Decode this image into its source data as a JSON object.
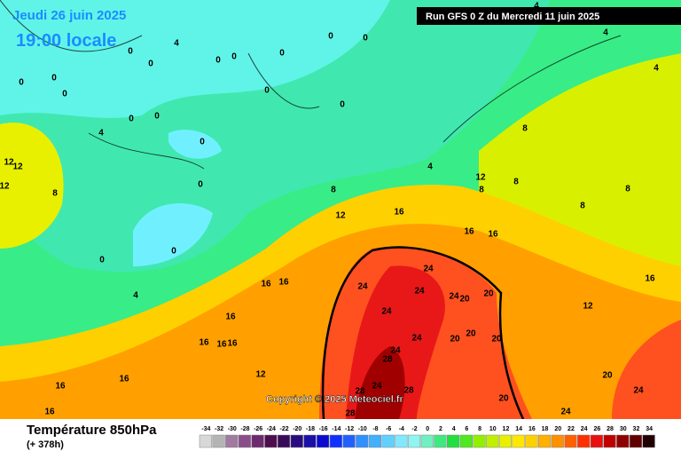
{
  "header": {
    "date": "Jeudi 26 juin 2025",
    "time": "19:00 locale",
    "run": "Run GFS 0 Z du Mercredi 11 juin 2025"
  },
  "copyright": "Copyright © 2025 Meteociel.fr",
  "footer": {
    "title": "Température 850hPa",
    "lead": "(+ 378h)"
  },
  "legend": {
    "values": [
      -34,
      -32,
      -30,
      -28,
      -26,
      -24,
      -22,
      -20,
      -18,
      -16,
      -14,
      -12,
      -10,
      -8,
      -6,
      -4,
      -2,
      0,
      2,
      4,
      6,
      8,
      10,
      12,
      14,
      16,
      18,
      20,
      22,
      24,
      26,
      28,
      30,
      32,
      34
    ],
    "colors": [
      "#d8d8d8",
      "#b4b4b4",
      "#a07aa0",
      "#8a4e8a",
      "#6e2a6e",
      "#4e0e4e",
      "#3a0a5a",
      "#2a0a80",
      "#1a10a8",
      "#0a0ad0",
      "#1030ff",
      "#2060ff",
      "#3090ff",
      "#40b0ff",
      "#60d0ff",
      "#80e8ff",
      "#90f4f0",
      "#70f0c0",
      "#40e880",
      "#20e040",
      "#50e820",
      "#90f000",
      "#c0f000",
      "#e8f000",
      "#ffe800",
      "#ffd000",
      "#ffb000",
      "#ff9000",
      "#ff6000",
      "#ff3000",
      "#e81010",
      "#c00000",
      "#900000",
      "#600000",
      "#200000"
    ]
  },
  "map_labels": [
    0,
    0,
    0,
    0,
    0,
    0,
    0,
    0,
    0,
    0,
    0,
    0,
    0,
    0,
    0,
    0,
    0,
    0,
    4,
    4,
    4,
    4,
    4,
    4,
    4,
    8,
    8,
    8,
    8,
    8,
    8,
    8,
    12,
    12,
    12,
    12,
    12,
    12,
    12,
    16,
    16,
    16,
    16,
    16,
    16,
    16,
    16,
    16,
    16,
    16,
    16,
    16,
    20,
    20,
    20,
    20,
    20,
    20,
    20,
    24,
    24,
    24,
    24,
    24,
    24,
    24,
    24,
    24,
    24,
    28,
    28,
    28,
    28
  ]
}
